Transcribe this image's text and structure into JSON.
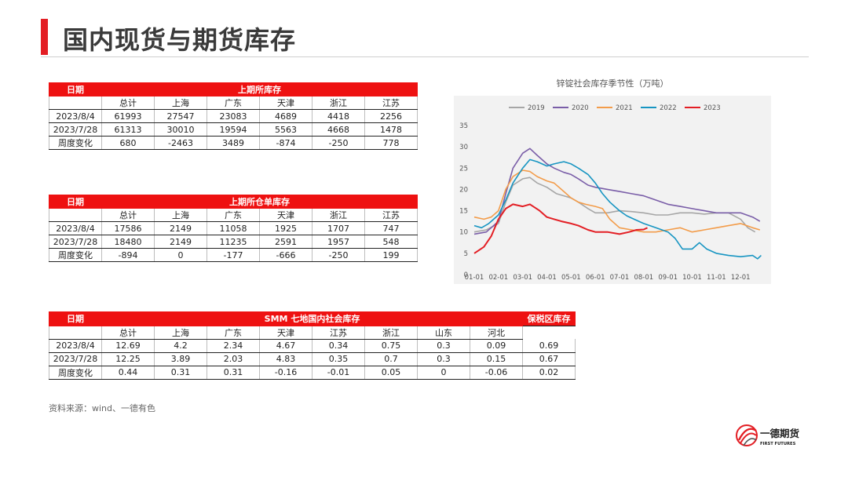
{
  "page": {
    "title": "国内现货与期货库存",
    "source": "资料来源：wind、一德有色",
    "logo_name_cn": "一德期货",
    "logo_name_en": "FIRST FUTURES",
    "accent_color": "#ee1111"
  },
  "table1": {
    "corner": "日期",
    "header": "上期所库存",
    "columns": [
      "总计",
      "上海",
      "广东",
      "天津",
      "浙江",
      "江苏"
    ],
    "rows": [
      {
        "label": "2023/8/4",
        "values": [
          "61993",
          "27547",
          "23083",
          "4689",
          "4418",
          "2256"
        ]
      },
      {
        "label": "2023/7/28",
        "values": [
          "61313",
          "30010",
          "19594",
          "5563",
          "4668",
          "1478"
        ]
      },
      {
        "label": "周度变化",
        "values": [
          "680",
          "-2463",
          "3489",
          "-874",
          "-250",
          "778"
        ]
      }
    ]
  },
  "table2": {
    "corner": "日期",
    "header": "上期所仓单库存",
    "columns": [
      "总计",
      "上海",
      "广东",
      "天津",
      "浙江",
      "江苏"
    ],
    "rows": [
      {
        "label": "2023/8/4",
        "values": [
          "17586",
          "2149",
          "11058",
          "1925",
          "1707",
          "747"
        ]
      },
      {
        "label": "2023/7/28",
        "values": [
          "18480",
          "2149",
          "11235",
          "2591",
          "1957",
          "548"
        ]
      },
      {
        "label": "周度变化",
        "values": [
          "-894",
          "0",
          "-177",
          "-666",
          "-250",
          "199"
        ]
      }
    ]
  },
  "table3": {
    "corner": "日期",
    "header": "SMM 七地国内社会库存",
    "extra_header": "保税区库存",
    "columns": [
      "总计",
      "上海",
      "广东",
      "天津",
      "江苏",
      "浙江",
      "山东",
      "河北"
    ],
    "rows": [
      {
        "label": "2023/8/4",
        "values": [
          "12.69",
          "4.2",
          "2.34",
          "4.67",
          "0.34",
          "0.75",
          "0.3",
          "0.09"
        ],
        "extra": "0.69"
      },
      {
        "label": "2023/7/28",
        "values": [
          "12.25",
          "3.89",
          "2.03",
          "4.83",
          "0.35",
          "0.7",
          "0.3",
          "0.15"
        ],
        "extra": "0.67"
      },
      {
        "label": "周度变化",
        "values": [
          "0.44",
          "0.31",
          "0.31",
          "-0.16",
          "-0.01",
          "0.05",
          "0",
          "-0.06"
        ],
        "extra": "0.02"
      }
    ]
  },
  "chart_data": {
    "type": "line",
    "title": "锌锭社会库存季节性（万吨）",
    "x_ticks": [
      "01-01",
      "02-01",
      "03-01",
      "04-01",
      "05-01",
      "06-01",
      "07-01",
      "08-01",
      "09-01",
      "10-01",
      "11-01",
      "12-01"
    ],
    "ylim": [
      0,
      35
    ],
    "y_ticks": [
      0,
      5,
      10,
      15,
      20,
      25,
      30,
      35
    ],
    "grid": false,
    "legend_position": "top",
    "x_unit": "month of year (fractional, 0 = Jan 1)",
    "series": [
      {
        "name": "2019",
        "color": "#a6a6a6",
        "points": [
          [
            0,
            10
          ],
          [
            0.5,
            10.5
          ],
          [
            1,
            12
          ],
          [
            1.3,
            17
          ],
          [
            1.6,
            21
          ],
          [
            2,
            22.5
          ],
          [
            2.3,
            22.8
          ],
          [
            2.6,
            21.5
          ],
          [
            3,
            20.5
          ],
          [
            3.4,
            19
          ],
          [
            3.7,
            18.5
          ],
          [
            4,
            18
          ],
          [
            4.3,
            17
          ],
          [
            4.7,
            15.5
          ],
          [
            5,
            14.5
          ],
          [
            5.5,
            14.5
          ],
          [
            6,
            15
          ],
          [
            6.5,
            14.8
          ],
          [
            7,
            14.5
          ],
          [
            7.5,
            14
          ],
          [
            8,
            14
          ],
          [
            8.5,
            14.5
          ],
          [
            9,
            14.5
          ],
          [
            9.5,
            14.2
          ],
          [
            10,
            14.5
          ],
          [
            10.5,
            14.5
          ],
          [
            11,
            13
          ],
          [
            11.3,
            11
          ],
          [
            11.6,
            10
          ]
        ]
      },
      {
        "name": "2020",
        "color": "#7a5ea8",
        "points": [
          [
            0,
            9.5
          ],
          [
            0.5,
            10
          ],
          [
            1,
            12.5
          ],
          [
            1.3,
            19
          ],
          [
            1.6,
            25
          ],
          [
            2,
            28.5
          ],
          [
            2.3,
            29.6
          ],
          [
            2.6,
            28
          ],
          [
            3,
            26
          ],
          [
            3.3,
            25
          ],
          [
            3.7,
            24
          ],
          [
            4,
            23.5
          ],
          [
            4.3,
            22.5
          ],
          [
            4.7,
            21
          ],
          [
            5,
            20.5
          ],
          [
            5.5,
            20
          ],
          [
            6,
            19.5
          ],
          [
            6.5,
            19
          ],
          [
            7,
            18.5
          ],
          [
            7.5,
            17.5
          ],
          [
            8,
            16.5
          ],
          [
            8.5,
            16
          ],
          [
            9,
            15.5
          ],
          [
            9.5,
            15
          ],
          [
            10,
            14.5
          ],
          [
            10.5,
            14.5
          ],
          [
            11,
            14.5
          ],
          [
            11.5,
            13.5
          ],
          [
            11.8,
            12.5
          ]
        ]
      },
      {
        "name": "2021",
        "color": "#f39c4a",
        "points": [
          [
            0,
            13.5
          ],
          [
            0.4,
            13
          ],
          [
            0.7,
            13.5
          ],
          [
            1,
            15
          ],
          [
            1.3,
            20
          ],
          [
            1.6,
            23
          ],
          [
            2,
            24.5
          ],
          [
            2.3,
            24.2
          ],
          [
            2.6,
            23
          ],
          [
            3,
            22
          ],
          [
            3.3,
            21.5
          ],
          [
            3.7,
            19.5
          ],
          [
            4,
            18
          ],
          [
            4.3,
            17
          ],
          [
            4.6,
            16.5
          ],
          [
            5,
            16
          ],
          [
            5.3,
            15.5
          ],
          [
            5.6,
            13
          ],
          [
            6,
            11
          ],
          [
            6.5,
            10.5
          ],
          [
            7,
            10
          ],
          [
            7.5,
            10
          ],
          [
            8,
            10.5
          ],
          [
            8.5,
            11
          ],
          [
            9,
            10
          ],
          [
            9.5,
            10.5
          ],
          [
            10,
            11
          ],
          [
            10.5,
            11.5
          ],
          [
            11,
            12
          ],
          [
            11.5,
            11
          ],
          [
            11.8,
            10.5
          ]
        ]
      },
      {
        "name": "2022",
        "color": "#1795c2",
        "points": [
          [
            0,
            11.5
          ],
          [
            0.3,
            11
          ],
          [
            0.6,
            12
          ],
          [
            1,
            14
          ],
          [
            1.3,
            17.5
          ],
          [
            1.6,
            21.5
          ],
          [
            2,
            25
          ],
          [
            2.3,
            27
          ],
          [
            2.6,
            26.5
          ],
          [
            3,
            25.5
          ],
          [
            3.3,
            26
          ],
          [
            3.7,
            26.5
          ],
          [
            4,
            26
          ],
          [
            4.3,
            25
          ],
          [
            4.7,
            23.5
          ],
          [
            5,
            21.5
          ],
          [
            5.3,
            19
          ],
          [
            5.6,
            17
          ],
          [
            6,
            15
          ],
          [
            6.3,
            13.8
          ],
          [
            6.6,
            13
          ],
          [
            7,
            12
          ],
          [
            7.5,
            11
          ],
          [
            8,
            10
          ],
          [
            8.3,
            8.5
          ],
          [
            8.6,
            6
          ],
          [
            9,
            6
          ],
          [
            9.3,
            7.5
          ],
          [
            9.6,
            6
          ],
          [
            10,
            5
          ],
          [
            10.5,
            4.5
          ],
          [
            11,
            4.2
          ],
          [
            11.5,
            4.5
          ],
          [
            11.7,
            3.7
          ],
          [
            11.85,
            4.5
          ]
        ]
      },
      {
        "name": "2023",
        "color": "#e31e24",
        "points": [
          [
            0,
            5
          ],
          [
            0.4,
            6.5
          ],
          [
            0.7,
            9
          ],
          [
            1,
            13
          ],
          [
            1.3,
            15.5
          ],
          [
            1.6,
            16.5
          ],
          [
            2,
            16
          ],
          [
            2.3,
            16.5
          ],
          [
            2.7,
            15
          ],
          [
            3,
            13.5
          ],
          [
            3.3,
            13
          ],
          [
            3.6,
            12.5
          ],
          [
            4,
            12
          ],
          [
            4.3,
            11.5
          ],
          [
            4.7,
            10.5
          ],
          [
            5,
            10
          ],
          [
            5.5,
            10
          ],
          [
            6,
            9.5
          ],
          [
            6.4,
            10
          ],
          [
            6.7,
            10.5
          ],
          [
            7,
            10.6
          ],
          [
            7.15,
            11
          ]
        ]
      }
    ]
  }
}
